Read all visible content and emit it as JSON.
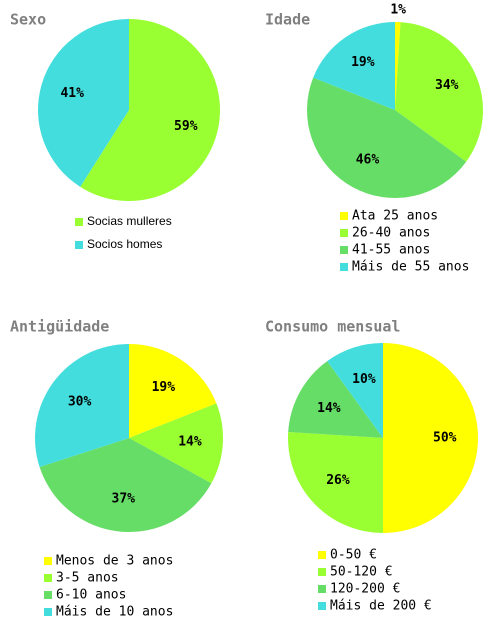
{
  "chart_data": [
    {
      "type": "pie",
      "title": "Sexo",
      "categories": [
        "Socias mulleres",
        "Socios homes"
      ],
      "values": [
        59,
        41
      ],
      "value_labels": [
        "59%",
        "41%"
      ],
      "colors": [
        "#99ff33",
        "#44dddd"
      ]
    },
    {
      "type": "pie",
      "title": "Idade",
      "categories": [
        "Ata 25 anos",
        "26-40 anos",
        "41-55 anos",
        "Máis de 55 anos"
      ],
      "values": [
        1,
        34,
        46,
        19
      ],
      "value_labels": [
        "1%",
        "34%",
        "46%",
        "19%"
      ],
      "colors": [
        "#ffff00",
        "#99ff33",
        "#66dd66",
        "#44dddd"
      ]
    },
    {
      "type": "pie",
      "title": "Antigüidade",
      "categories": [
        "Menos de 3 anos",
        "3-5 anos",
        "6-10 anos",
        "Máis de 10 anos"
      ],
      "values": [
        19,
        14,
        37,
        30
      ],
      "value_labels": [
        "19%",
        "14%",
        "37%",
        "30%"
      ],
      "colors": [
        "#ffff00",
        "#99ff33",
        "#66dd66",
        "#44dddd"
      ]
    },
    {
      "type": "pie",
      "title": "Consumo mensual",
      "categories": [
        "0-50 €",
        "50-120 €",
        "120-200 €",
        "Máis de 200 €"
      ],
      "values": [
        50,
        26,
        14,
        10
      ],
      "value_labels": [
        "50%",
        "26%",
        "14%",
        "10%"
      ],
      "colors": [
        "#ffff00",
        "#99ff33",
        "#66dd66",
        "#44dddd"
      ]
    }
  ]
}
